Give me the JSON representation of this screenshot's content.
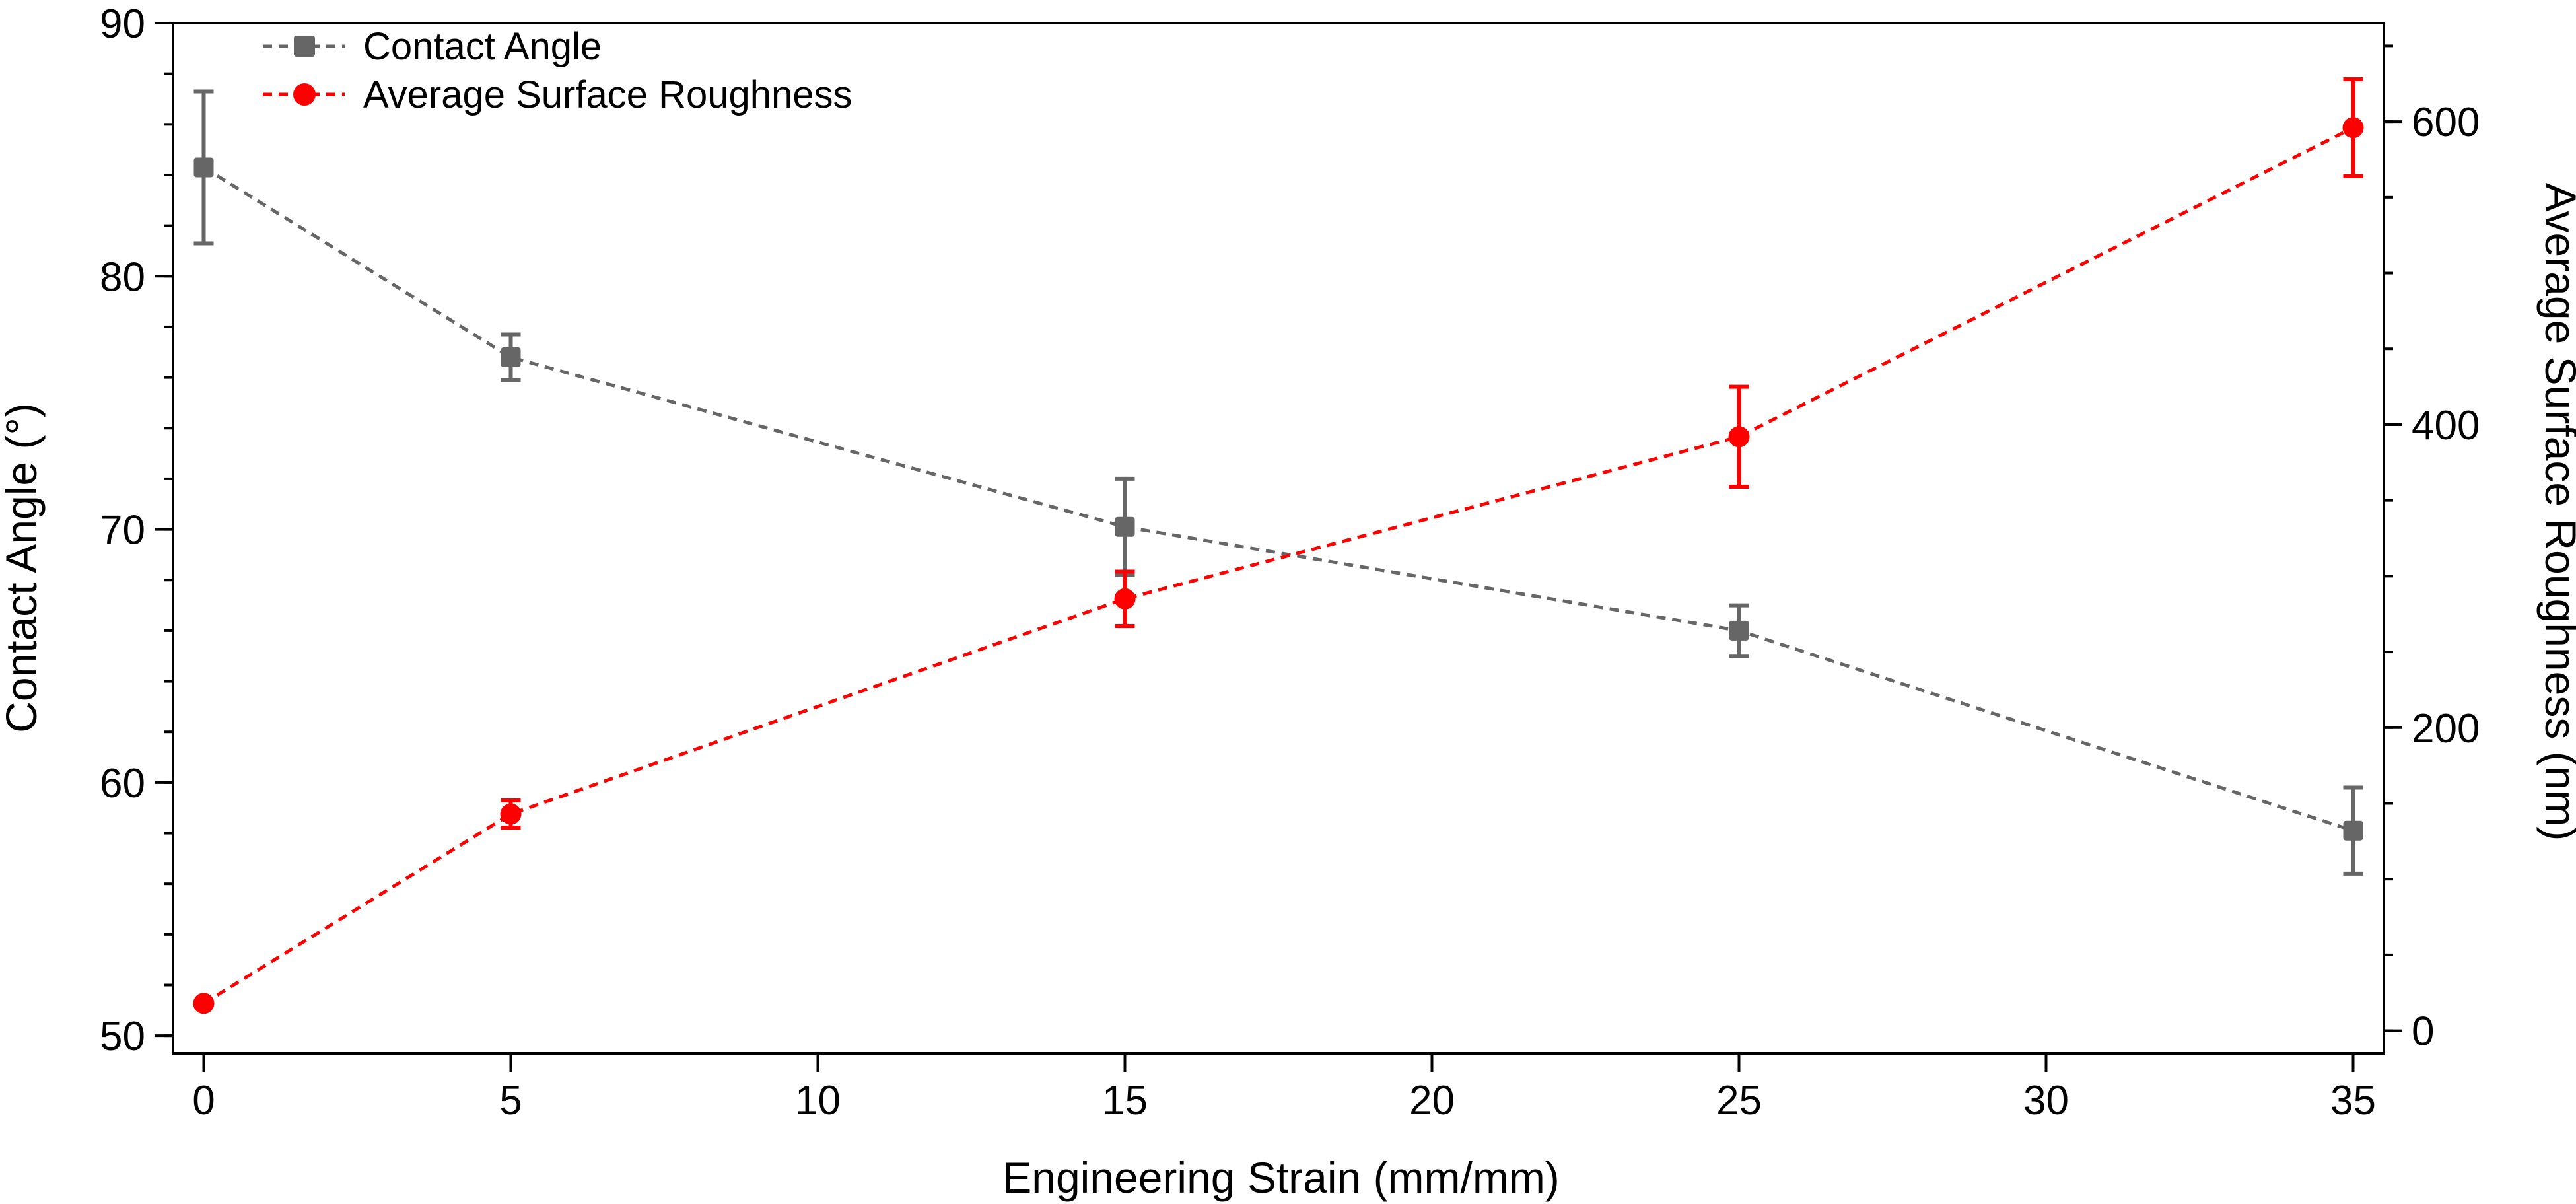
{
  "chart_data": {
    "type": "line",
    "xlabel": "Engineering Strain (mm/mm)",
    "ylabel": "Contact Angle (°)",
    "y2label": "Average Surface Roughness (nm)",
    "xlim": [
      -0.5,
      35.5
    ],
    "ylim": [
      49.3,
      90.0
    ],
    "y2lim": [
      -15,
      665
    ],
    "x_ticks": [
      0,
      5,
      10,
      15,
      20,
      25,
      30,
      35
    ],
    "y_ticks": [
      50,
      60,
      70,
      80,
      90
    ],
    "y2_ticks": [
      0,
      200,
      400,
      600
    ],
    "y_minor_step": 2,
    "y2_minor_step": 50,
    "legend_position": "top-left",
    "series": [
      {
        "name": "Contact Angle",
        "axis": "left",
        "marker": "square",
        "color": "#666666",
        "line_style": "dashed",
        "x": [
          0,
          5,
          15,
          25,
          35
        ],
        "values": [
          84.3,
          76.8,
          70.1,
          66.0,
          58.1
        ],
        "error": [
          3.0,
          0.9,
          1.9,
          1.0,
          1.7
        ]
      },
      {
        "name": "Average Surface Roughness",
        "axis": "right",
        "marker": "circle",
        "color": "#ff0000",
        "line_style": "dashed",
        "x": [
          0,
          5,
          15,
          25,
          35
        ],
        "values": [
          18,
          143,
          285,
          392,
          596
        ],
        "error": [
          0,
          9,
          18,
          33,
          32
        ]
      }
    ]
  }
}
